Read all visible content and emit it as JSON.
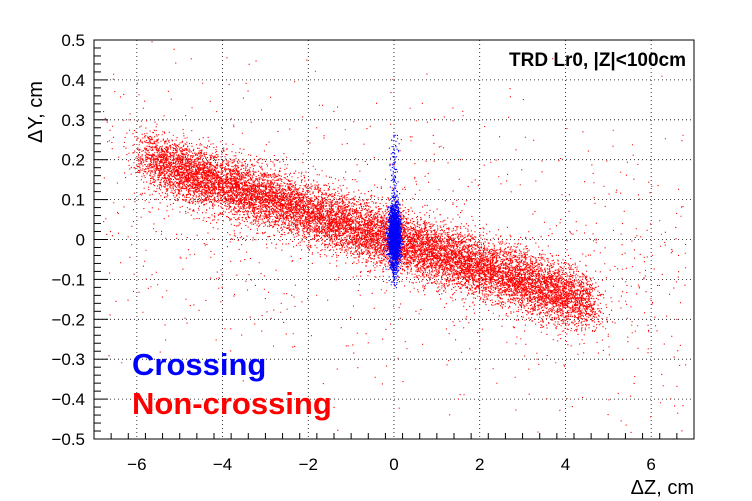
{
  "chart_data": {
    "type": "scatter",
    "title": "TRD Lr0, |Z|<100cm",
    "xlabel": "ΔZ, cm",
    "ylabel": "ΔY, cm",
    "xlim": [
      -7,
      7
    ],
    "ylim": [
      -0.5,
      0.5
    ],
    "x_ticks": [
      -6,
      -4,
      -2,
      0,
      2,
      4,
      6
    ],
    "x_tick_labels": [
      "−6",
      "−4",
      "−2",
      "0",
      "2",
      "4",
      "6"
    ],
    "y_ticks": [
      -0.5,
      -0.4,
      -0.3,
      -0.2,
      -0.1,
      0,
      0.1,
      0.2,
      0.3,
      0.4,
      0.5
    ],
    "y_tick_labels": [
      "−0.5",
      "−0.4",
      "−0.3",
      "−0.2",
      "−0.1",
      "0",
      "0.1",
      "0.2",
      "0.3",
      "0.4",
      "0.5"
    ],
    "grid": true,
    "legend_placement": "bottom-left",
    "series": [
      {
        "name": "Non-crossing",
        "color": "#ff0000",
        "shape": "elongated band along slope",
        "x_range": [
          -6.1,
          4.9
        ],
        "center": [
          0,
          0
        ],
        "slope": -0.035,
        "core_half_width_y": 0.05
      },
      {
        "name": "Crossing",
        "color": "#0000ff",
        "shape": "narrow vertical column",
        "x_range": [
          -0.3,
          0.3
        ],
        "y_range": [
          -0.12,
          0.2
        ],
        "center": [
          0,
          0.01
        ]
      }
    ]
  }
}
